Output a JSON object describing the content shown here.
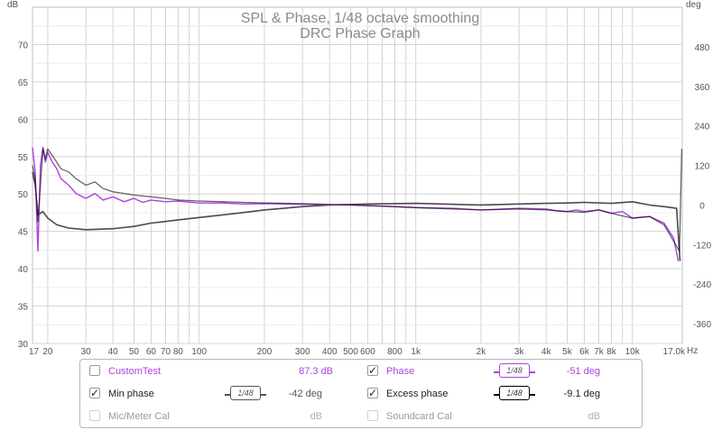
{
  "chart_data": {
    "type": "line",
    "title": "SPL & Phase, 1/48 octave smoothing",
    "subtitle": "DRC Phase Graph",
    "left_axis": {
      "label": "dB",
      "min": 30,
      "max": 75,
      "ticks": [
        "30",
        "35",
        "40",
        "45",
        "50",
        "55",
        "60",
        "65",
        "70"
      ],
      "tick_values": [
        30,
        35,
        40,
        45,
        50,
        55,
        60,
        65,
        70
      ]
    },
    "right_axis": {
      "label": "deg",
      "min": -420,
      "max": 600,
      "ticks": [
        "-360",
        "-240",
        "-120",
        "0",
        "120",
        "240",
        "360",
        "480"
      ],
      "tick_values": [
        -360,
        -240,
        -120,
        0,
        120,
        240,
        360,
        480
      ]
    },
    "x_axis": {
      "unit": "Hz",
      "scale": "log",
      "min": 17,
      "max": 17000,
      "ticks": [
        "17",
        "20",
        "30",
        "40",
        "50",
        "60",
        "70",
        "80",
        "100",
        "200",
        "300",
        "400",
        "500",
        "600",
        "800",
        "1k",
        "2k",
        "3k",
        "4k",
        "5k",
        "6k",
        "7k",
        "8k",
        "10k",
        "17.0k"
      ],
      "tick_values": [
        17,
        20,
        30,
        40,
        50,
        60,
        70,
        80,
        100,
        200,
        300,
        400,
        500,
        600,
        800,
        1000,
        2000,
        3000,
        4000,
        5000,
        6000,
        7000,
        8000,
        10000,
        17000
      ]
    },
    "grid": true,
    "legend_placement": "bottom",
    "series": [
      {
        "name": "Phase",
        "color": "#b040e0",
        "axis": "deg",
        "x": [
          17,
          17.5,
          18,
          18.5,
          19,
          19.5,
          20,
          21,
          22,
          23,
          25,
          27,
          30,
          33,
          36,
          40,
          45,
          50,
          55,
          60,
          70,
          80,
          100,
          130,
          160,
          200,
          300,
          500,
          800,
          1000,
          1500,
          2000,
          3000,
          4000,
          4500,
          5000,
          5500,
          6000,
          7000,
          8000,
          9000,
          10000,
          12000,
          14000,
          15500,
          16300
        ],
        "y": [
          175,
          100,
          -140,
          120,
          175,
          130,
          160,
          130,
          110,
          80,
          60,
          35,
          20,
          35,
          15,
          25,
          10,
          20,
          8,
          15,
          10,
          12,
          6,
          6,
          3,
          4,
          2,
          0,
          -5,
          -8,
          -10,
          -15,
          -10,
          -12,
          -18,
          -20,
          -15,
          -20,
          -15,
          -25,
          -20,
          -40,
          -35,
          -55,
          -100,
          -170
        ]
      },
      {
        "name": "Min phase",
        "color": "#4a4a4a",
        "axis": "deg",
        "x": [
          17,
          17.5,
          18,
          19,
          20,
          22,
          25,
          30,
          40,
          50,
          60,
          70,
          80,
          100,
          150,
          200,
          300,
          400,
          600,
          1000,
          2000,
          3000,
          4000,
          5000,
          6000,
          8000,
          10000,
          12000,
          14000,
          16000,
          16600
        ],
        "y": [
          100,
          60,
          -30,
          -20,
          -40,
          -60,
          -70,
          -75,
          -72,
          -65,
          -55,
          -50,
          -45,
          -38,
          -25,
          -15,
          -5,
          0,
          3,
          5,
          0,
          3,
          5,
          6,
          8,
          5,
          10,
          0,
          -5,
          -10,
          -170
        ]
      },
      {
        "name": "Excess phase",
        "color": "#000000",
        "axis": "deg",
        "x": [
          17,
          17.5,
          18,
          18.5,
          19,
          19.5,
          20,
          21,
          22,
          23,
          25,
          27,
          30,
          33,
          36,
          40,
          45,
          50,
          60,
          70,
          80,
          100,
          130,
          160,
          200,
          300,
          500,
          800,
          1000,
          1500,
          2000,
          3000,
          4000,
          5000,
          6000,
          7000,
          8000,
          10000,
          12000,
          14000,
          15500,
          16500,
          16900
        ],
        "y": [
          120,
          80,
          -50,
          60,
          170,
          140,
          170,
          150,
          130,
          110,
          100,
          80,
          60,
          70,
          50,
          40,
          35,
          30,
          25,
          20,
          15,
          12,
          10,
          8,
          6,
          4,
          0,
          -5,
          -8,
          -12,
          -15,
          -12,
          -15,
          -20,
          -22,
          -15,
          -25,
          -40,
          -35,
          -60,
          -110,
          -140,
          170
        ]
      }
    ]
  },
  "legend": {
    "rows": [
      [
        {
          "checked": false,
          "enabled": true,
          "name": "CustomTest",
          "color": "#b040e0",
          "value": "87.3 dB",
          "value_color": "#b040e0",
          "smoothing": ""
        },
        {
          "checked": true,
          "enabled": true,
          "name": "Phase",
          "color": "#b040e0",
          "value": "-51 deg",
          "value_color": "#b040e0",
          "smoothing": "1/48"
        }
      ],
      [
        {
          "checked": true,
          "enabled": true,
          "name": "Min phase",
          "color": "#222222",
          "value": "-42 deg",
          "value_color": "#555555",
          "smoothing": "1/48"
        },
        {
          "checked": true,
          "enabled": true,
          "name": "Excess phase",
          "color": "#222222",
          "value": "-9.1 deg",
          "value_color": "#222222",
          "smoothing": "1/48"
        }
      ],
      [
        {
          "checked": false,
          "enabled": false,
          "name": "Mic/Meter Cal",
          "color": "#9a9a9a",
          "value": "dB",
          "value_color": "#b0b0b0",
          "smoothing": ""
        },
        {
          "checked": false,
          "enabled": false,
          "name": "Soundcard Cal",
          "color": "#9a9a9a",
          "value": "dB",
          "value_color": "#b0b0b0",
          "smoothing": ""
        }
      ]
    ],
    "check_glyph": "✓",
    "phase_smoothing_border": "#b040e0",
    "min_phase_smoothing_border": "#333333"
  },
  "colors": {
    "grid": "#d4d4d4",
    "axis_text": "#555555",
    "title": "#888888"
  }
}
